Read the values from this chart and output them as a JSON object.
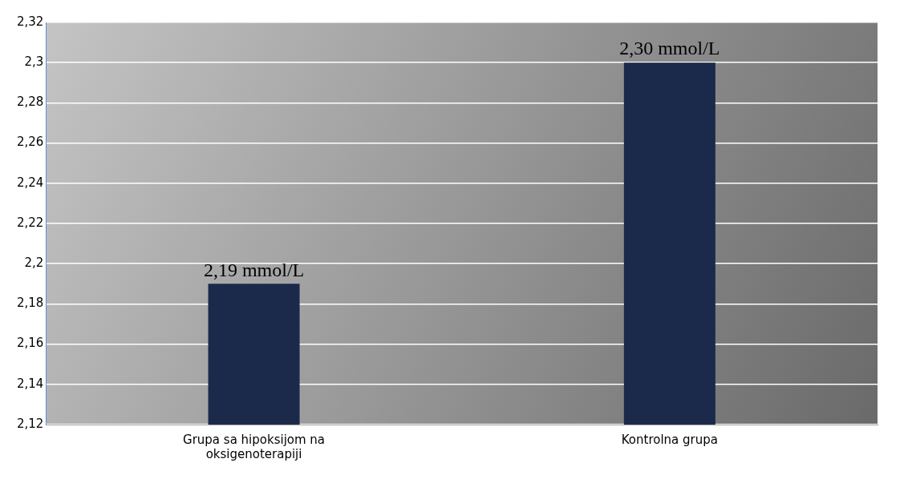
{
  "chart_data": {
    "type": "bar",
    "categories": [
      "Grupa sa hipoksijom na oksigenoterapiji",
      "Kontrolna grupa"
    ],
    "values": [
      2.19,
      2.3
    ],
    "color": "#1b2a4a",
    "value_labels": [
      "2,19 mmol/L",
      "2,30 mmol/L"
    ],
    "ylim": [
      2.12,
      2.32
    ],
    "yticks": [
      {
        "value": 2.12,
        "label": "2,12"
      },
      {
        "value": 2.14,
        "label": "2,14"
      },
      {
        "value": 2.16,
        "label": "2,16"
      },
      {
        "value": 2.18,
        "label": "2,18"
      },
      {
        "value": 2.2,
        "label": "2,2"
      },
      {
        "value": 2.22,
        "label": "2,22"
      },
      {
        "value": 2.24,
        "label": "2,24"
      },
      {
        "value": 2.26,
        "label": "2,26"
      },
      {
        "value": 2.28,
        "label": "2,28"
      },
      {
        "value": 2.3,
        "label": "2,3"
      },
      {
        "value": 2.32,
        "label": "2,32"
      }
    ],
    "grid": "y",
    "legend": false
  }
}
